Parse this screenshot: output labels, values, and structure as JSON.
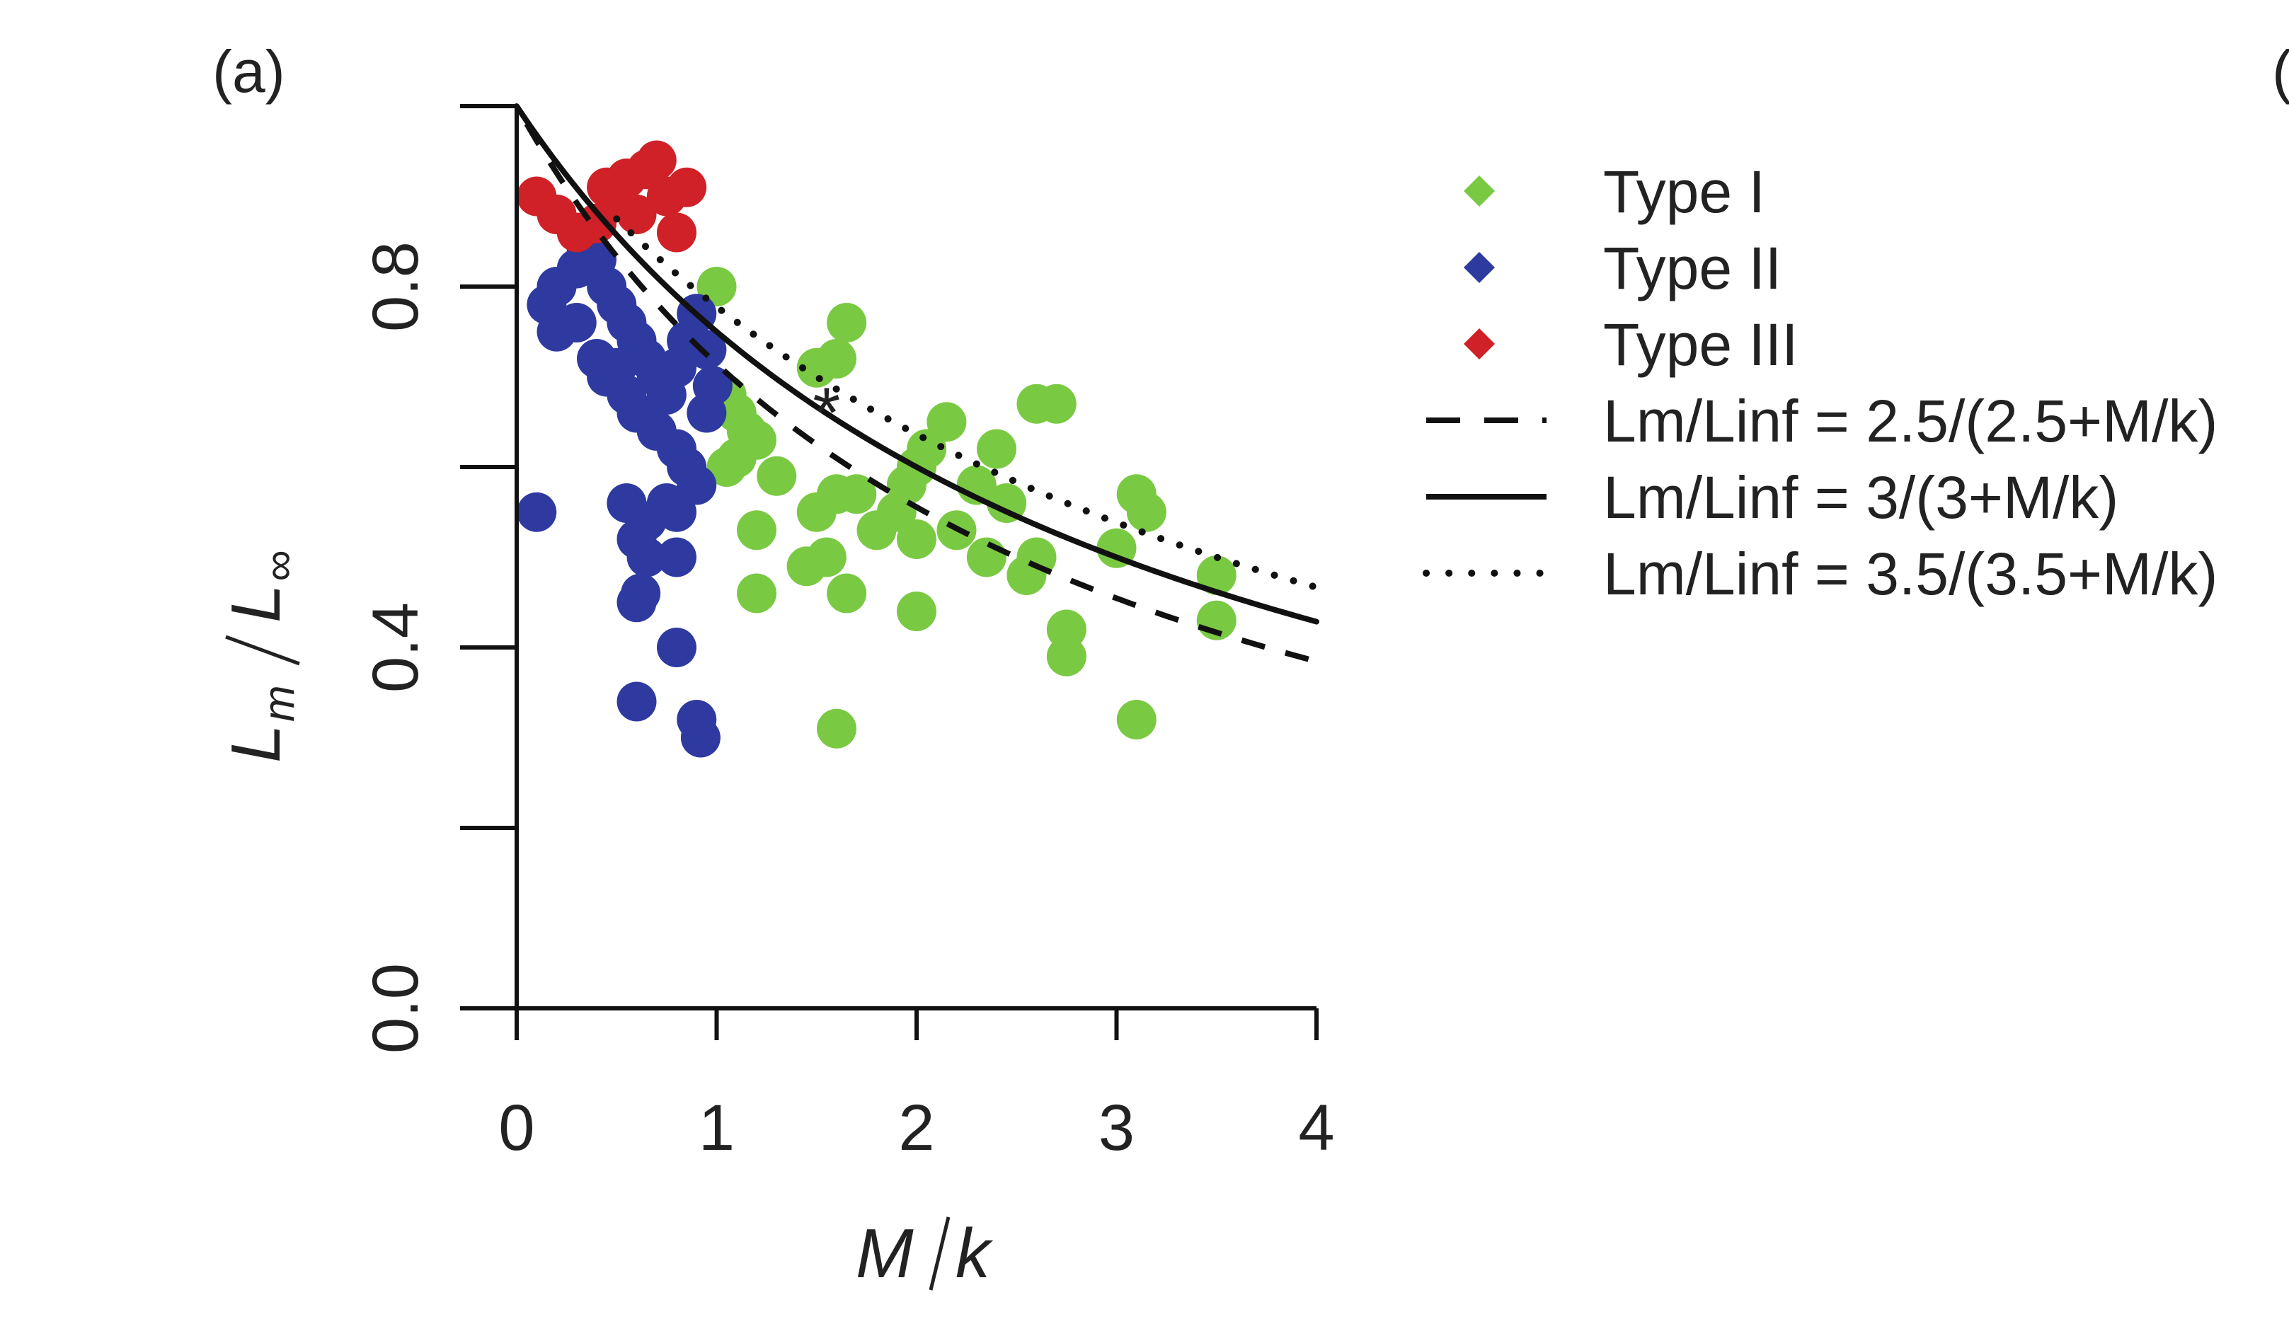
{
  "panel_label": "(a)",
  "next_panel_partial": "(",
  "colors": {
    "type1": "#7ac943",
    "type2": "#2e3aa0",
    "type3": "#cf2127",
    "line": "#111111"
  },
  "chart_data": {
    "type": "scatter",
    "xlabel": "M / k",
    "ylabel": "Lm / L∞",
    "xlim": [
      0,
      4
    ],
    "ylim": [
      0,
      1.0
    ],
    "x_ticks": [
      0,
      1,
      2,
      3,
      4
    ],
    "x_tick_labels": [
      "0",
      "1",
      "2",
      "3",
      "4"
    ],
    "y_ticks": [
      0.0,
      0.2,
      0.4,
      0.6,
      0.8,
      1.0
    ],
    "y_tick_labels": [
      "0.0",
      "",
      "0.4",
      "",
      "0.8",
      ""
    ],
    "legend_position": "right",
    "series": [
      {
        "name": "Type I",
        "marker": "filled-circle",
        "color": "#7ac943",
        "points": [
          [
            1.0,
            0.8
          ],
          [
            1.65,
            0.76
          ],
          [
            1.6,
            0.72
          ],
          [
            1.5,
            0.71
          ],
          [
            1.05,
            0.68
          ],
          [
            1.1,
            0.66
          ],
          [
            1.15,
            0.64
          ],
          [
            1.2,
            0.63
          ],
          [
            1.05,
            0.6
          ],
          [
            1.1,
            0.61
          ],
          [
            1.3,
            0.59
          ],
          [
            1.2,
            0.53
          ],
          [
            1.5,
            0.55
          ],
          [
            1.45,
            0.49
          ],
          [
            1.55,
            0.5
          ],
          [
            1.6,
            0.57
          ],
          [
            1.7,
            0.57
          ],
          [
            1.65,
            0.46
          ],
          [
            2.0,
            0.6
          ],
          [
            1.95,
            0.58
          ],
          [
            1.9,
            0.55
          ],
          [
            2.05,
            0.62
          ],
          [
            2.15,
            0.65
          ],
          [
            2.2,
            0.53
          ],
          [
            2.0,
            0.44
          ],
          [
            2.3,
            0.58
          ],
          [
            2.4,
            0.62
          ],
          [
            2.45,
            0.56
          ],
          [
            2.35,
            0.5
          ],
          [
            2.55,
            0.48
          ],
          [
            2.6,
            0.5
          ],
          [
            2.6,
            0.67
          ],
          [
            2.7,
            0.67
          ],
          [
            2.75,
            0.42
          ],
          [
            2.75,
            0.39
          ],
          [
            3.1,
            0.57
          ],
          [
            3.15,
            0.55
          ],
          [
            3.0,
            0.51
          ],
          [
            3.5,
            0.48
          ],
          [
            3.5,
            0.43
          ],
          [
            3.1,
            0.32
          ],
          [
            1.2,
            0.46
          ],
          [
            1.6,
            0.31
          ],
          [
            2.0,
            0.52
          ],
          [
            1.8,
            0.53
          ]
        ]
      },
      {
        "name": "Type II",
        "marker": "filled-circle",
        "color": "#2e3aa0",
        "points": [
          [
            0.1,
            0.55
          ],
          [
            0.15,
            0.78
          ],
          [
            0.2,
            0.8
          ],
          [
            0.3,
            0.82
          ],
          [
            0.35,
            0.84
          ],
          [
            0.4,
            0.83
          ],
          [
            0.45,
            0.8
          ],
          [
            0.5,
            0.78
          ],
          [
            0.55,
            0.76
          ],
          [
            0.6,
            0.74
          ],
          [
            0.65,
            0.72
          ],
          [
            0.7,
            0.7
          ],
          [
            0.75,
            0.68
          ],
          [
            0.8,
            0.71
          ],
          [
            0.85,
            0.74
          ],
          [
            0.9,
            0.77
          ],
          [
            0.95,
            0.73
          ],
          [
            0.2,
            0.75
          ],
          [
            0.3,
            0.76
          ],
          [
            0.4,
            0.72
          ],
          [
            0.5,
            0.71
          ],
          [
            0.45,
            0.7
          ],
          [
            0.55,
            0.68
          ],
          [
            0.6,
            0.66
          ],
          [
            0.7,
            0.64
          ],
          [
            0.8,
            0.62
          ],
          [
            0.85,
            0.6
          ],
          [
            0.9,
            0.58
          ],
          [
            0.75,
            0.56
          ],
          [
            0.8,
            0.55
          ],
          [
            0.65,
            0.54
          ],
          [
            0.55,
            0.56
          ],
          [
            0.6,
            0.52
          ],
          [
            0.65,
            0.5
          ],
          [
            0.8,
            0.5
          ],
          [
            0.62,
            0.46
          ],
          [
            0.6,
            0.45
          ],
          [
            0.8,
            0.4
          ],
          [
            0.6,
            0.34
          ],
          [
            0.9,
            0.32
          ],
          [
            0.92,
            0.3
          ],
          [
            0.95,
            0.66
          ],
          [
            0.98,
            0.69
          ]
        ]
      },
      {
        "name": "Type III",
        "marker": "filled-circle",
        "color": "#cf2127",
        "points": [
          [
            0.1,
            0.9
          ],
          [
            0.2,
            0.88
          ],
          [
            0.3,
            0.86
          ],
          [
            0.4,
            0.87
          ],
          [
            0.45,
            0.91
          ],
          [
            0.5,
            0.9
          ],
          [
            0.55,
            0.92
          ],
          [
            0.6,
            0.88
          ],
          [
            0.65,
            0.93
          ],
          [
            0.7,
            0.94
          ],
          [
            0.75,
            0.9
          ],
          [
            0.8,
            0.86
          ],
          [
            0.85,
            0.91
          ]
        ]
      },
      {
        "name": "Lm/Linf = 2.5/(2.5+M/k)",
        "marker": "dashed-line",
        "color": "#111111",
        "constant": 2.5,
        "x_range": [
          0.05,
          4
        ]
      },
      {
        "name": "Lm/Linf = 3/(3+M/k)",
        "marker": "solid-line",
        "color": "#111111",
        "constant": 3,
        "x_range": [
          0,
          4
        ]
      },
      {
        "name": "Lm/Linf = 3.5/(3.5+M/k)",
        "marker": "dotted-line",
        "color": "#111111",
        "constant": 3.5,
        "x_range": [
          0.5,
          4
        ]
      }
    ],
    "annotations": [
      {
        "label": "*",
        "x": 1.55,
        "y": 0.66
      }
    ]
  }
}
